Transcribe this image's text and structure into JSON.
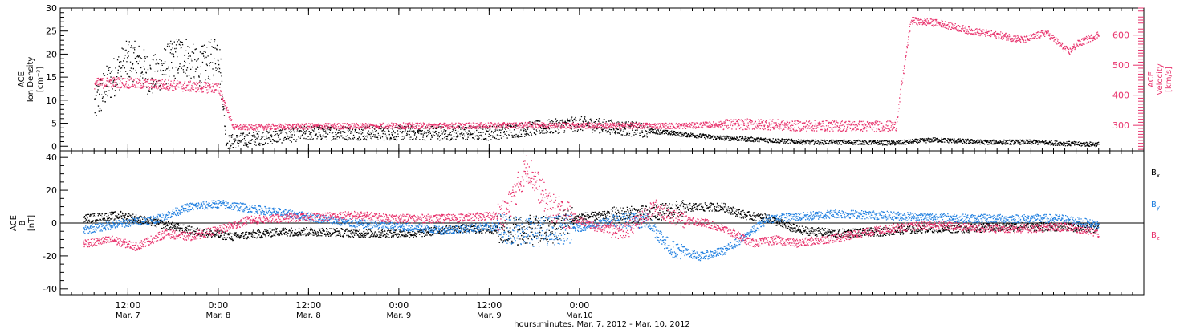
{
  "chart_data": [
    {
      "type": "scatter",
      "panel": "top",
      "left_axis": {
        "label_lines": [
          "ACE",
          "Ion Density"
        ],
        "unit": "[cm⁻³]",
        "ylim": [
          -1,
          30
        ],
        "ticks": [
          0,
          5,
          10,
          15,
          20,
          25,
          30
        ],
        "tick_labels": [
          "0",
          "5",
          "10",
          "15",
          "20",
          "25",
          "30"
        ]
      },
      "right_axis": {
        "label_lines": [
          "ACE",
          "Velocity"
        ],
        "unit": "[km/s]",
        "ylim": [
          215,
          690
        ],
        "ticks": [
          300,
          400,
          500,
          600
        ],
        "tick_labels": [
          "300",
          "400",
          "500",
          "600"
        ],
        "color": "#e8336d"
      },
      "series": [
        {
          "axis": "left",
          "color": "#000000",
          "points": [
            [
              3,
              9
            ],
            [
              6,
              13
            ],
            [
              9,
              16
            ],
            [
              12,
              19
            ],
            [
              15,
              18
            ],
            [
              18,
              15
            ],
            [
              21,
              17
            ],
            [
              24,
              19
            ],
            [
              27,
              20
            ],
            [
              30,
              17
            ],
            [
              33,
              18
            ],
            [
              36,
              21
            ],
            [
              38,
              1
            ],
            [
              48,
              2
            ],
            [
              60,
              3
            ],
            [
              72,
              3
            ],
            [
              84,
              3
            ],
            [
              96,
              3
            ],
            [
              108,
              3
            ],
            [
              120,
              4
            ],
            [
              132,
              5
            ],
            [
              144,
              4
            ],
            [
              156,
              3
            ],
            [
              168,
              2
            ],
            [
              180,
              1.5
            ],
            [
              192,
              1
            ],
            [
              204,
              1
            ],
            [
              216,
              0.8
            ],
            [
              226,
              1.5
            ],
            [
              240,
              1
            ],
            [
              252,
              1
            ],
            [
              264,
              0.6
            ],
            [
              270,
              0.5
            ]
          ]
        },
        {
          "axis": "right",
          "color": "#e8336d",
          "points": [
            [
              3,
              440
            ],
            [
              8,
              445
            ],
            [
              14,
              440
            ],
            [
              20,
              438
            ],
            [
              26,
              432
            ],
            [
              32,
              428
            ],
            [
              36,
              425
            ],
            [
              40,
              295
            ],
            [
              60,
              298
            ],
            [
              80,
              300
            ],
            [
              100,
              300
            ],
            [
              120,
              302
            ],
            [
              140,
              300
            ],
            [
              160,
              300
            ],
            [
              170,
              305
            ],
            [
              180,
              305
            ],
            [
              190,
              300
            ],
            [
              200,
              300
            ],
            [
              216,
              298
            ],
            [
              220,
              650
            ],
            [
              228,
              640
            ],
            [
              236,
              615
            ],
            [
              244,
              600
            ],
            [
              250,
              585
            ],
            [
              256,
              610
            ],
            [
              262,
              545
            ],
            [
              264,
              570
            ],
            [
              270,
              605
            ]
          ]
        }
      ]
    },
    {
      "type": "scatter",
      "panel": "bottom",
      "axis": {
        "label_lines": [
          "ACE",
          "B"
        ],
        "unit": "[nT]",
        "ylim": [
          -44,
          44
        ],
        "ticks": [
          -40,
          -20,
          0,
          20,
          40
        ],
        "tick_labels": [
          "-40",
          "-20",
          "0",
          "20",
          "40"
        ]
      },
      "legend": [
        "Bx",
        "By",
        "Bz"
      ],
      "series": [
        {
          "name": "Bx",
          "color": "#000000",
          "points": [
            [
              0,
              3
            ],
            [
              10,
              5
            ],
            [
              20,
              0
            ],
            [
              30,
              -5
            ],
            [
              40,
              -8
            ],
            [
              52,
              -5
            ],
            [
              64,
              -5
            ],
            [
              76,
              -6
            ],
            [
              88,
              -6
            ],
            [
              100,
              -3
            ],
            [
              112,
              -4
            ],
            [
              124,
              -4
            ],
            [
              132,
              4
            ],
            [
              140,
              5
            ],
            [
              150,
              6
            ],
            [
              162,
              10
            ],
            [
              170,
              10
            ],
            [
              176,
              5
            ],
            [
              182,
              3
            ],
            [
              190,
              -4
            ],
            [
              200,
              -6
            ],
            [
              212,
              -5
            ],
            [
              224,
              -3
            ],
            [
              236,
              -3
            ],
            [
              248,
              -2
            ],
            [
              260,
              -2
            ],
            [
              270,
              -3
            ]
          ]
        },
        {
          "name": "By",
          "color": "#1f7fe0",
          "points": [
            [
              0,
              -4
            ],
            [
              10,
              0
            ],
            [
              20,
              3
            ],
            [
              28,
              10
            ],
            [
              36,
              12
            ],
            [
              48,
              8
            ],
            [
              60,
              4
            ],
            [
              72,
              0
            ],
            [
              84,
              -2
            ],
            [
              96,
              -4
            ],
            [
              108,
              -2
            ],
            [
              120,
              -5
            ],
            [
              130,
              -3
            ],
            [
              140,
              1
            ],
            [
              150,
              2
            ],
            [
              156,
              -15
            ],
            [
              164,
              -20
            ],
            [
              170,
              -17
            ],
            [
              176,
              -8
            ],
            [
              182,
              3
            ],
            [
              190,
              4
            ],
            [
              200,
              6
            ],
            [
              212,
              5
            ],
            [
              224,
              4
            ],
            [
              236,
              3
            ],
            [
              248,
              3
            ],
            [
              260,
              3
            ],
            [
              270,
              -1
            ]
          ]
        },
        {
          "name": "Bz",
          "color": "#e8336d",
          "points": [
            [
              0,
              -12
            ],
            [
              8,
              -10
            ],
            [
              14,
              -14
            ],
            [
              22,
              -6
            ],
            [
              28,
              -8
            ],
            [
              36,
              -4
            ],
            [
              44,
              2
            ],
            [
              52,
              3
            ],
            [
              60,
              4
            ],
            [
              72,
              5
            ],
            [
              84,
              3
            ],
            [
              96,
              3
            ],
            [
              112,
              5
            ],
            [
              118,
              35
            ],
            [
              124,
              10
            ],
            [
              136,
              -2
            ],
            [
              144,
              -5
            ],
            [
              152,
              10
            ],
            [
              158,
              3
            ],
            [
              166,
              0
            ],
            [
              172,
              -5
            ],
            [
              178,
              -12
            ],
            [
              184,
              -10
            ],
            [
              190,
              -12
            ],
            [
              202,
              -8
            ],
            [
              214,
              -3
            ],
            [
              226,
              -1
            ],
            [
              240,
              -3
            ],
            [
              252,
              -3
            ],
            [
              262,
              -2
            ],
            [
              270,
              -6
            ]
          ]
        }
      ]
    }
  ],
  "x_axis": {
    "range_hours": [
      -6,
      282
    ],
    "major_ticks": [
      {
        "hour": 12,
        "time": "12:00",
        "date": "Mar. 7"
      },
      {
        "hour": 36,
        "time": "0:00",
        "date": "Mar. 8"
      },
      {
        "hour": 60,
        "time": "12:00",
        "date": "Mar. 8"
      },
      {
        "hour": 84,
        "time": "0:00",
        "date": "Mar. 9"
      },
      {
        "hour": 108,
        "time": "12:00",
        "date": "Mar. 9"
      },
      {
        "hour": 132,
        "time": "0:00",
        "date": "Mar.10"
      }
    ],
    "title": "hours:minutes, Mar.  7, 2012 - Mar. 10, 2012"
  },
  "colors": {
    "black": "#000000",
    "pink": "#e8336d",
    "blue": "#1f7fe0"
  }
}
